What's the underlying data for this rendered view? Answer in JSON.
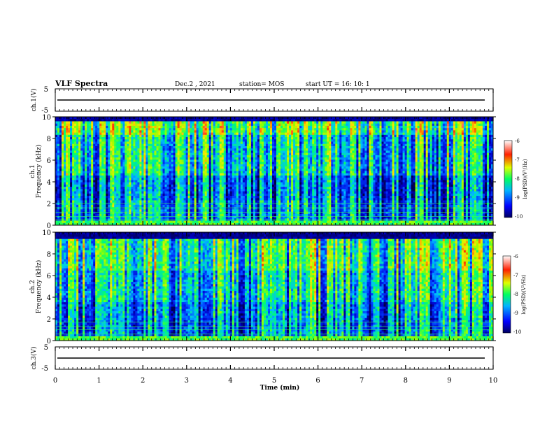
{
  "header": {
    "title": "VLF Spectra",
    "date": "Dec.2 , 2021",
    "station": "station= MOS",
    "start": "start UT = 16: 10: 1"
  },
  "chart_data": [
    {
      "type": "line",
      "ylabel": "ch.1(V)",
      "ylim": [
        -5,
        5
      ],
      "yticks": [
        "5",
        "-5"
      ],
      "x": [
        0,
        10
      ],
      "values": [
        0,
        0
      ]
    },
    {
      "type": "heatmap",
      "ylabel_top": "ch.1",
      "ylabel": "Frequency (kHz)",
      "ylim": [
        0,
        10
      ],
      "yticks": [
        "0",
        "2",
        "4",
        "6",
        "8",
        "10"
      ],
      "colorbar_label": "log(PSD)(V²/Hz)",
      "colorbar_ticks": [
        "-6",
        "-7",
        "-8",
        "-9",
        "-10"
      ],
      "colorbar_range": [
        -10,
        -6
      ]
    },
    {
      "type": "heatmap",
      "ylabel_top": "ch.2",
      "ylabel": "Frequency (kHz)",
      "ylim": [
        0,
        10
      ],
      "yticks": [
        "0",
        "2",
        "4",
        "6",
        "8",
        "10"
      ],
      "colorbar_label": "log(PSD)(V²/Hz)",
      "colorbar_ticks": [
        "-6",
        "-7",
        "-8",
        "-9",
        "-10"
      ],
      "colorbar_range": [
        -10,
        -6
      ]
    },
    {
      "type": "line",
      "ylabel": "ch.3(V)",
      "ylim": [
        -5,
        5
      ],
      "yticks": [
        "5",
        "-5"
      ],
      "x": [
        0,
        10
      ],
      "values": [
        0,
        0
      ]
    }
  ],
  "xaxis": {
    "label": "Time (min)",
    "xlim": [
      0,
      10
    ],
    "ticks": [
      "0",
      "1",
      "2",
      "3",
      "4",
      "5",
      "6",
      "7",
      "8",
      "9",
      "10"
    ]
  }
}
